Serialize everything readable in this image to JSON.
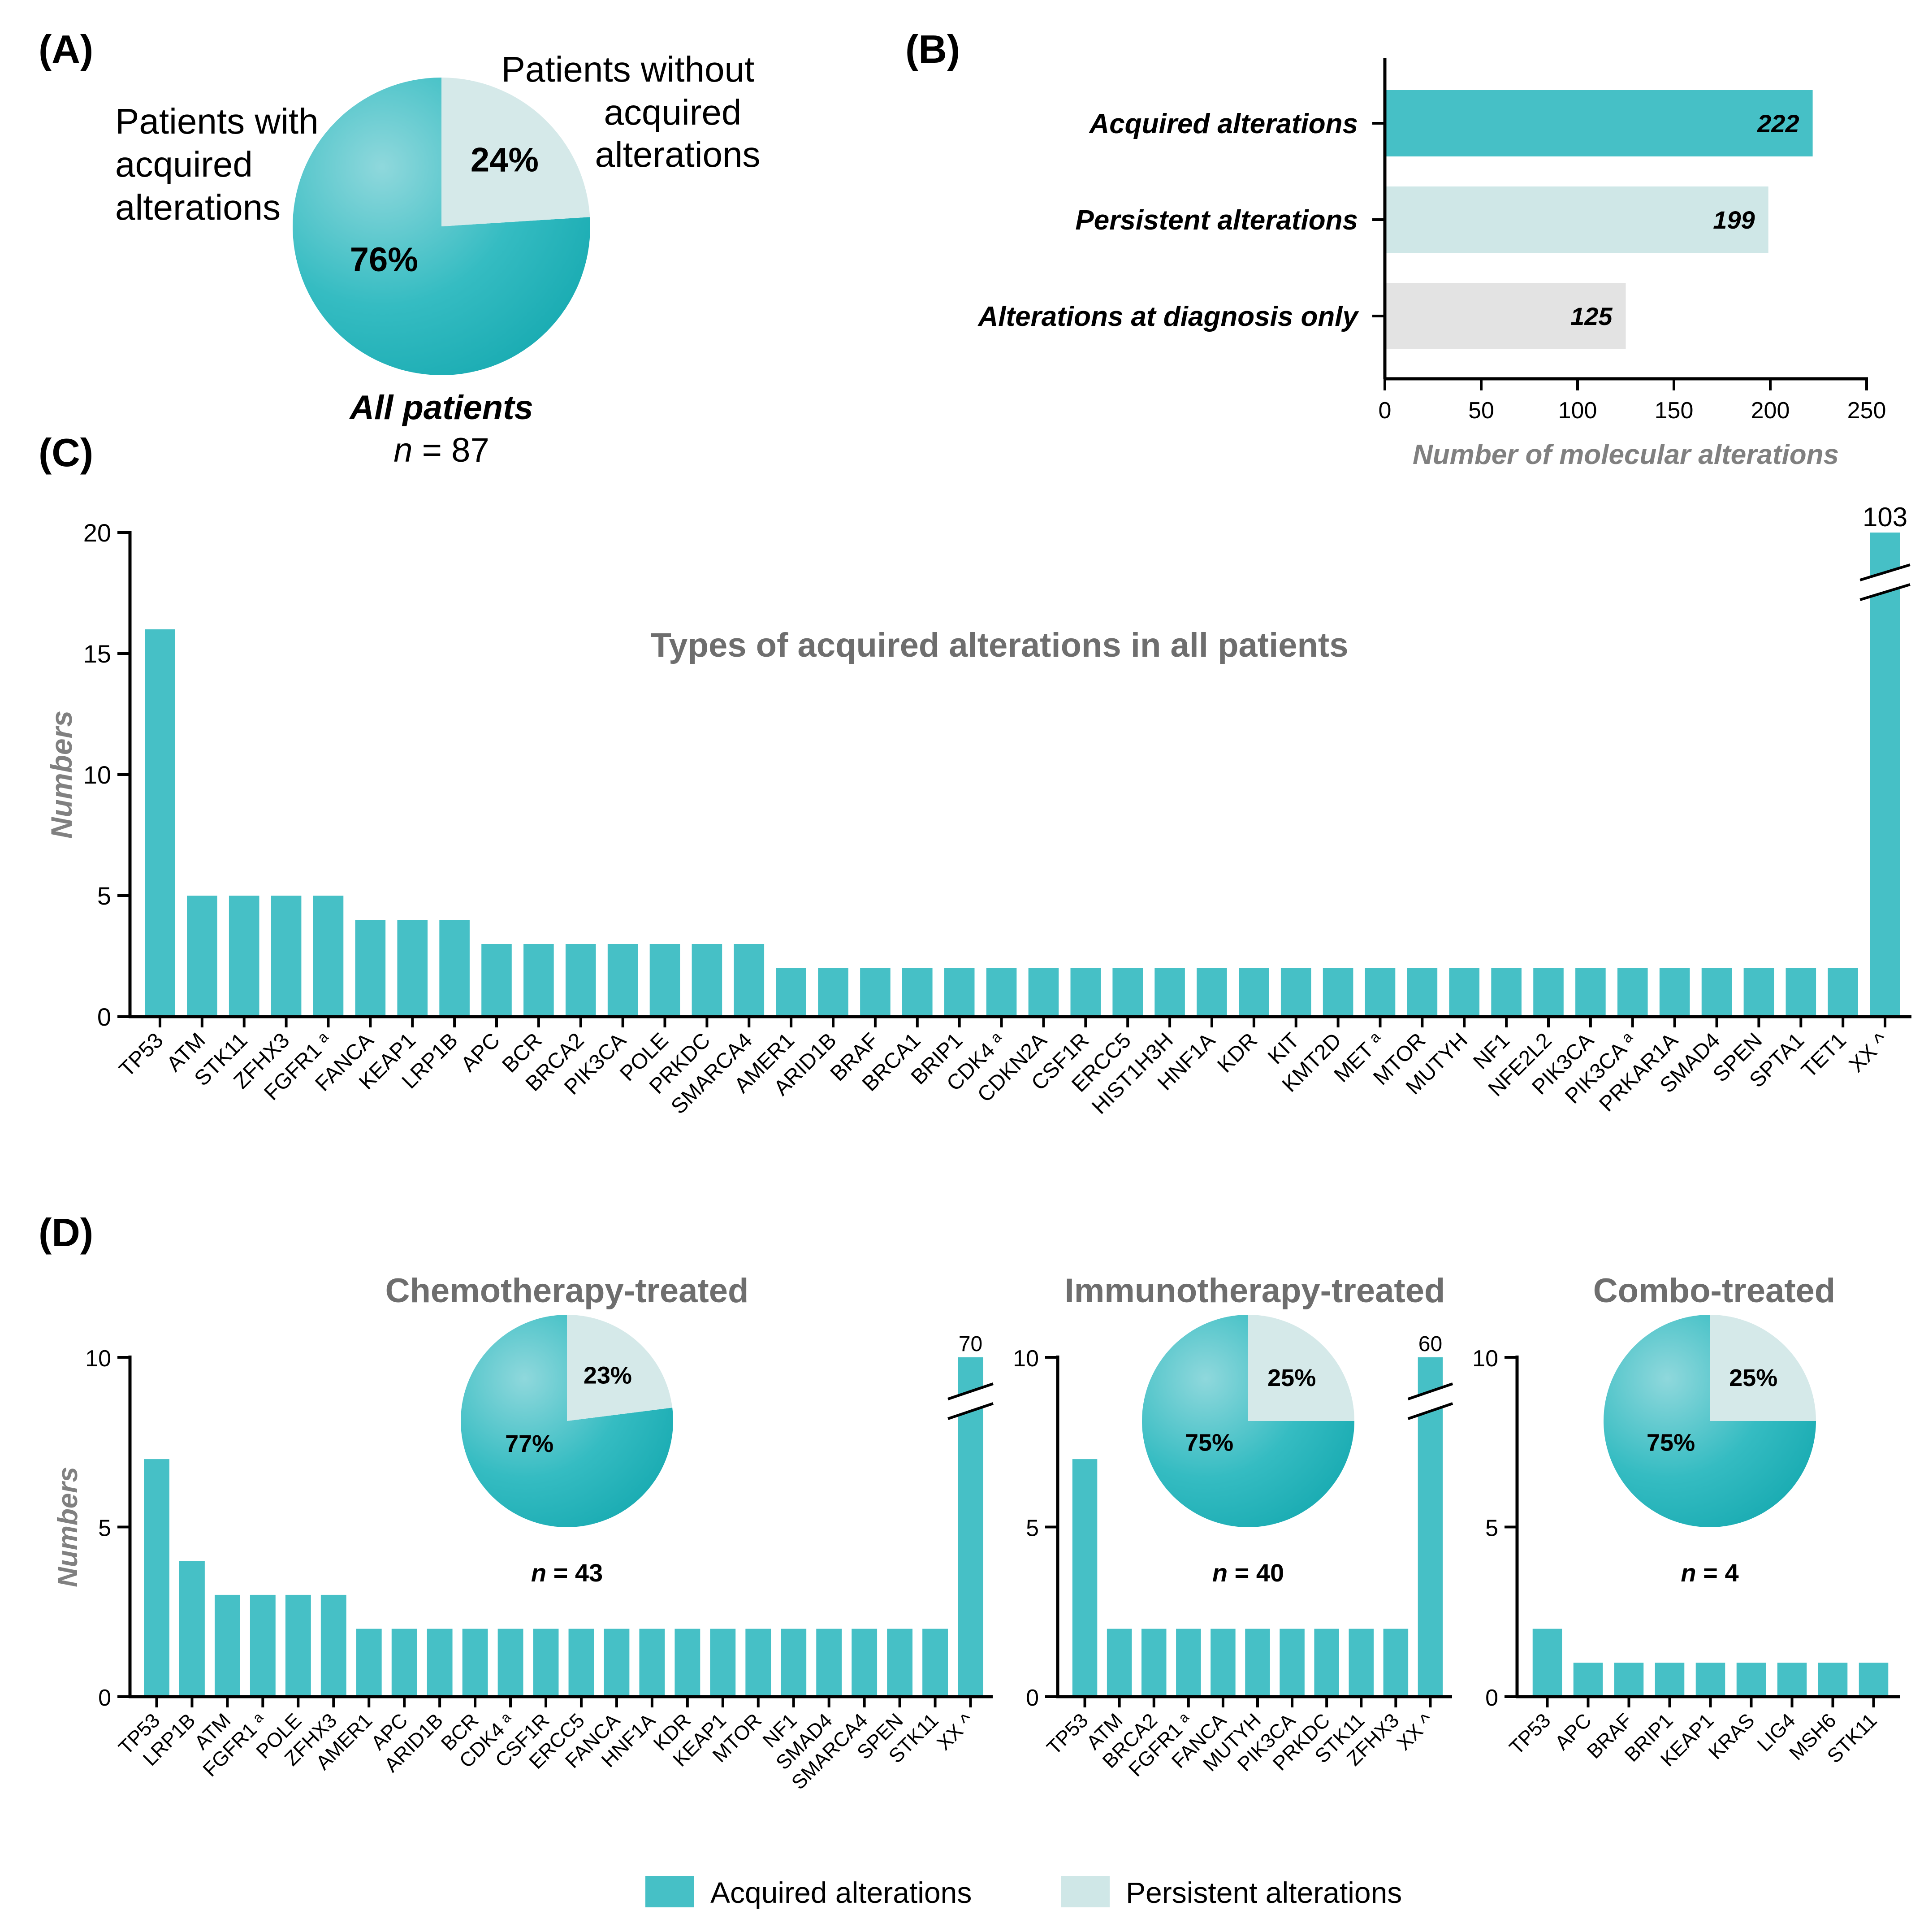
{
  "colors": {
    "acquired": "#46c0c6",
    "persistent": "#cfe7e7",
    "diagnosis_only": "#e3e3e3",
    "pie_main": "#27b7bd",
    "pie_light": "#d5e9e9"
  },
  "legend": {
    "acquired": "Acquired alterations",
    "persistent": "Persistent alterations"
  },
  "panelA": {
    "label": "(A)",
    "callout_with": [
      "Patients with",
      "acquired",
      "alterations"
    ],
    "callout_without": [
      "Patients without",
      "acquired",
      "alterations"
    ],
    "caption": "All patients",
    "n_italic": "n",
    "n_rest": " = 87"
  },
  "panelB": {
    "label": "(B)"
  },
  "panelC": {
    "label": "(C)"
  },
  "panelD": {
    "label": "(D)",
    "titles": [
      "Chemotherapy-treated",
      "Immunotherapy-treated",
      "Combo-treated"
    ],
    "pie_captions": [
      {
        "n_italic": "n",
        "rest": " = 43"
      },
      {
        "n_italic": "n",
        "rest": " = 40"
      },
      {
        "n_italic": "n",
        "rest": " = 4"
      }
    ]
  },
  "chart_data": [
    {
      "id": "A",
      "type": "pie",
      "title": "All patients",
      "n": "n = 87",
      "slices": [
        {
          "label": "Patients with acquired alterations",
          "value": 76,
          "display": "76%"
        },
        {
          "label": "Patients without acquired alterations",
          "value": 24,
          "display": "24%"
        }
      ]
    },
    {
      "id": "B",
      "type": "bar",
      "orientation": "horizontal",
      "categories": [
        "Acquired alterations",
        "Persistent alterations",
        "Alterations at diagnosis only"
      ],
      "values": [
        222,
        199,
        125
      ],
      "data_labels": [
        "222",
        "199",
        "125"
      ],
      "xlabel": "Number of molecular alterations",
      "xlim": [
        0,
        250
      ],
      "xticks": [
        "0",
        "50",
        "100",
        "150",
        "200",
        "250"
      ]
    },
    {
      "id": "C",
      "type": "bar",
      "title": "Types of acquired alterations in all patients",
      "ylabel": "Numbers",
      "ylim": [
        0,
        20
      ],
      "yticks": [
        "0",
        "5",
        "10",
        "15",
        "20"
      ],
      "axis_break": true,
      "categories": [
        "TP53",
        "ATM",
        "STK11",
        "ZFHX3",
        "FGFR1 ᵃ",
        "FANCA",
        "KEAP1",
        "LRP1B",
        "APC",
        "BCR",
        "BRCA2",
        "PIK3CA",
        "POLE",
        "PRKDC",
        "SMARCA4",
        "AMER1",
        "ARID1B",
        "BRAF",
        "BRCA1",
        "BRIP1",
        "CDK4 ᵃ",
        "CDKN2A",
        "CSF1R",
        "ERCC5",
        "HIST1H3H",
        "HNF1A",
        "KDR",
        "KIT",
        "KMT2D",
        "MET ᵃ",
        "MTOR",
        "MUTYH",
        "NF1",
        "NFE2L2",
        "PIK3CA",
        "PIK3CA ᵃ",
        "PRKAR1A",
        "SMAD4",
        "SPEN",
        "SPTA1",
        "TET1",
        "XX ^"
      ],
      "values": [
        16,
        5,
        5,
        5,
        5,
        4,
        4,
        4,
        3,
        3,
        3,
        3,
        3,
        3,
        3,
        2,
        2,
        2,
        2,
        2,
        2,
        2,
        2,
        2,
        2,
        2,
        2,
        2,
        2,
        2,
        2,
        2,
        2,
        2,
        2,
        2,
        2,
        2,
        2,
        2,
        2,
        103
      ],
      "data_labels": {
        "XX ^": "103"
      }
    },
    {
      "id": "D1",
      "type": "bar",
      "title": "Chemotherapy-treated",
      "ylabel": "Numbers",
      "ylim": [
        0,
        10
      ],
      "yticks": [
        "0",
        "5",
        "10"
      ],
      "axis_break": true,
      "categories": [
        "TP53",
        "LRP1B",
        "ATM",
        "FGFR1 ᵃ",
        "POLE",
        "ZFHX3",
        "AMER1",
        "APC",
        "ARID1B",
        "BCR",
        "CDK4 ᵃ",
        "CSF1R",
        "ERCC5",
        "FANCA",
        "HNF1A",
        "KDR",
        "KEAP1",
        "MTOR",
        "NF1",
        "SMAD4",
        "SMARCA4",
        "SPEN",
        "STK11",
        "XX ^"
      ],
      "values": [
        7,
        4,
        3,
        3,
        3,
        3,
        2,
        2,
        2,
        2,
        2,
        2,
        2,
        2,
        2,
        2,
        2,
        2,
        2,
        2,
        2,
        2,
        2,
        70
      ],
      "data_labels": {
        "XX ^": "70"
      },
      "inset_pie": {
        "n": "n = 43",
        "slices": [
          {
            "label": "Acquired alterations",
            "value": 77,
            "display": "77%"
          },
          {
            "label": "Persistent alterations",
            "value": 23,
            "display": "23%"
          }
        ]
      }
    },
    {
      "id": "D2",
      "type": "bar",
      "title": "Immunotherapy-treated",
      "ylim": [
        0,
        10
      ],
      "yticks": [
        "0",
        "5",
        "10"
      ],
      "axis_break": true,
      "categories": [
        "TP53",
        "ATM",
        "BRCA2",
        "FGFR1 ᵃ",
        "FANCA",
        "MUTYH",
        "PIK3CA",
        "PRKDC",
        "STK11",
        "ZFHX3",
        "XX ^"
      ],
      "values": [
        7,
        2,
        2,
        2,
        2,
        2,
        2,
        2,
        2,
        2,
        60
      ],
      "data_labels": {
        "XX ^": "60"
      },
      "inset_pie": {
        "n": "n = 40",
        "slices": [
          {
            "label": "Acquired alterations",
            "value": 75,
            "display": "75%"
          },
          {
            "label": "Persistent alterations",
            "value": 25,
            "display": "25%"
          }
        ]
      }
    },
    {
      "id": "D3",
      "type": "bar",
      "title": "Combo-treated",
      "ylim": [
        0,
        10
      ],
      "yticks": [
        "0",
        "5",
        "10"
      ],
      "categories": [
        "TP53",
        "APC",
        "BRAF",
        "BRIP1",
        "KEAP1",
        "KRAS",
        "LIG4",
        "MSH6",
        "STK11"
      ],
      "values": [
        2,
        1,
        1,
        1,
        1,
        1,
        1,
        1,
        1
      ],
      "inset_pie": {
        "n": "n = 4",
        "slices": [
          {
            "label": "Acquired alterations",
            "value": 75,
            "display": "75%"
          },
          {
            "label": "Persistent alterations",
            "value": 25,
            "display": "25%"
          }
        ]
      }
    }
  ]
}
